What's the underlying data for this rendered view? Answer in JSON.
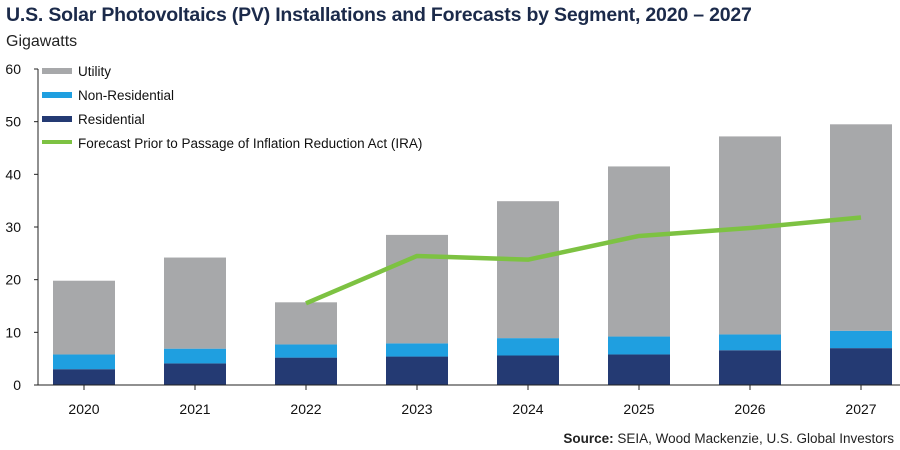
{
  "title": "U.S. Solar Photovoltaics (PV) Installations and Forecasts by Segment, 2020 – 2027",
  "ylabel": "Gigawatts",
  "source": {
    "label": "Source:",
    "text": "SEIA, Wood Mackenzie, U.S. Global Investors"
  },
  "colors": {
    "utility": "#a7a8aa",
    "non_residential": "#1f9fe0",
    "residential": "#243a73",
    "forecast": "#7dc242"
  },
  "chart_data": {
    "type": "bar",
    "stacked": true,
    "title": "U.S. Solar Photovoltaics (PV) Installations and Forecasts by Segment, 2020 – 2027",
    "ylabel": "Gigawatts",
    "xlabel": "",
    "ylim": [
      0,
      60
    ],
    "yticks": [
      0,
      10,
      20,
      30,
      40,
      50,
      60
    ],
    "categories": [
      "2020",
      "2021",
      "2022",
      "2023",
      "2024",
      "2025",
      "2026",
      "2027"
    ],
    "series": [
      {
        "name": "Residential",
        "values": [
          3.0,
          4.1,
          5.2,
          5.4,
          5.6,
          5.8,
          6.6,
          7.0
        ]
      },
      {
        "name": "Non-Residential",
        "values": [
          2.8,
          2.8,
          2.5,
          2.5,
          3.3,
          3.4,
          3.0,
          3.3
        ]
      },
      {
        "name": "Utility",
        "values": [
          14.0,
          17.3,
          8.0,
          20.6,
          26.0,
          32.3,
          37.6,
          39.2
        ]
      }
    ],
    "forecast_line": {
      "name": "Forecast Prior to Passage of Inflation Reduction Act (IRA)",
      "categories": [
        "2022",
        "2023",
        "2024",
        "2025",
        "2026",
        "2027"
      ],
      "values": [
        15.5,
        24.5,
        23.8,
        28.3,
        29.8,
        31.8
      ]
    },
    "legend": {
      "placement": "top-left",
      "items": [
        "Utility",
        "Non-Residential",
        "Residential",
        "Forecast Prior to Passage of Inflation Reduction Act (IRA)"
      ]
    },
    "grid": false
  }
}
